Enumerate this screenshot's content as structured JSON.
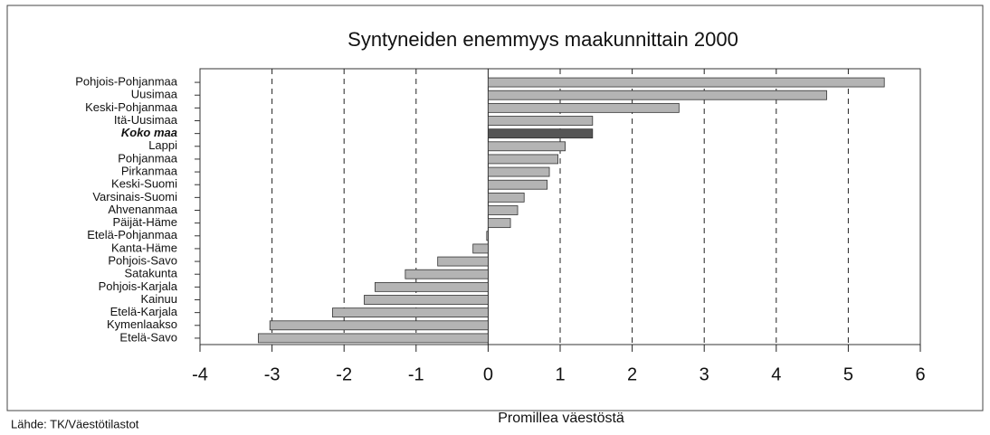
{
  "chart_data": {
    "type": "hbar",
    "title": "Syntyneiden enemmyys maakunnittain 2000",
    "xlabel": "Promillea väestöstä",
    "source": "Lähde: TK/Väestötilastot",
    "categories": [
      "Pohjois-Pohjanmaa",
      "Uusimaa",
      "Keski-Pohjanmaa",
      "Itä-Uusimaa",
      "Koko maa",
      "Lappi",
      "Pohjanmaa",
      "Pirkanmaa",
      "Keski-Suomi",
      "Varsinais-Suomi",
      "Ahvenanmaa",
      "Päijät-Häme",
      "Etelä-Pohjanmaa",
      "Kanta-Häme",
      "Pohjois-Savo",
      "Satakunta",
      "Pohjois-Karjala",
      "Kainuu",
      "Etelä-Karjala",
      "Kymenlaakso",
      "Etelä-Savo"
    ],
    "values": [
      5.5,
      4.7,
      2.65,
      1.45,
      1.45,
      1.07,
      0.97,
      0.85,
      0.82,
      0.5,
      0.41,
      0.31,
      -0.02,
      -0.21,
      -0.7,
      -1.15,
      -1.57,
      -1.72,
      -2.16,
      -3.03,
      -3.19
    ],
    "color": "#b4b4b4",
    "highlight_index": 4,
    "highlight_color": "#555555",
    "xlim": [
      -4,
      6
    ],
    "xticks": [
      -4,
      -3,
      -2,
      -1,
      0,
      1,
      2,
      3,
      4,
      5,
      6
    ],
    "grid": true
  }
}
